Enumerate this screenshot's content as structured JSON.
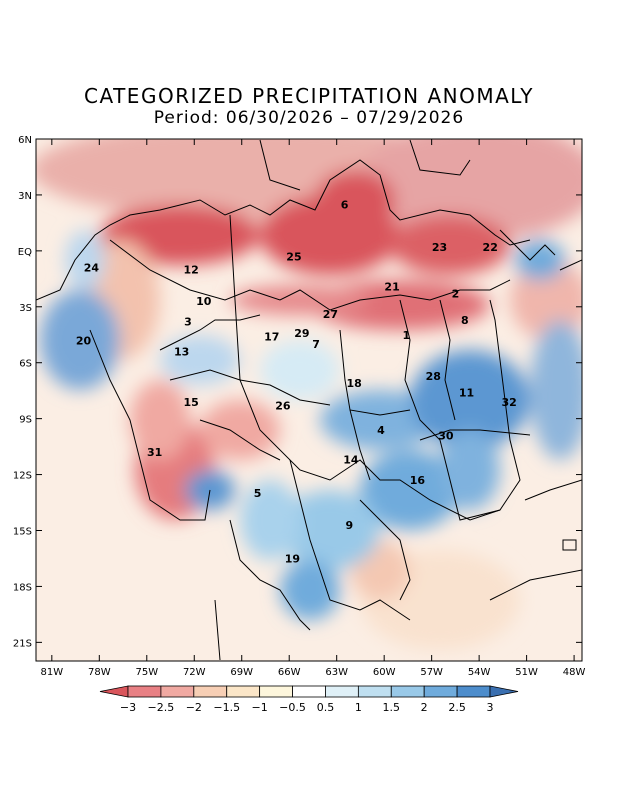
{
  "title": "CATEGORIZED PRECIPITATION ANOMALY",
  "period": "Period: 06/30/2026 – 07/29/2026",
  "lat_ticks": [
    {
      "lat": 6,
      "label": "6N"
    },
    {
      "lat": 3,
      "label": "3N"
    },
    {
      "lat": 0,
      "label": "EQ"
    },
    {
      "lat": -3,
      "label": "3S"
    },
    {
      "lat": -6,
      "label": "6S"
    },
    {
      "lat": -9,
      "label": "9S"
    },
    {
      "lat": -12,
      "label": "12S"
    },
    {
      "lat": -15,
      "label": "15S"
    },
    {
      "lat": -18,
      "label": "18S"
    },
    {
      "lat": -21,
      "label": "21S"
    }
  ],
  "lon_ticks": [
    {
      "lon": -81,
      "label": "81W"
    },
    {
      "lon": -78,
      "label": "78W"
    },
    {
      "lon": -75,
      "label": "75W"
    },
    {
      "lon": -72,
      "label": "72W"
    },
    {
      "lon": -69,
      "label": "69W"
    },
    {
      "lon": -66,
      "label": "66W"
    },
    {
      "lon": -63,
      "label": "63W"
    },
    {
      "lon": -60,
      "label": "60W"
    },
    {
      "lon": -57,
      "label": "57W"
    },
    {
      "lon": -54,
      "label": "54W"
    },
    {
      "lon": -51,
      "label": "51W"
    },
    {
      "lon": -48,
      "label": "48W"
    }
  ],
  "extent": {
    "lon_min": -82,
    "lon_max": -47.5,
    "lat_min": -22,
    "lat_max": 6
  },
  "colorbar": {
    "labels": [
      "-3",
      "-2.5",
      "-2",
      "-1.5",
      "-1",
      "-0.5",
      "0.5",
      "1",
      "1.5",
      "2",
      "2.5",
      "3"
    ],
    "colors": [
      "#d9555b",
      "#e88084",
      "#f0a9a2",
      "#f7cfb5",
      "#fbe6c8",
      "#fdf6dc",
      "#ffffff",
      "#dff0f7",
      "#bfdff0",
      "#99c9e8",
      "#6fabdc",
      "#4d8dcc",
      "#3a6fb0"
    ]
  },
  "basins": [
    {
      "id": "1",
      "lon": -58.6,
      "lat": -4.5
    },
    {
      "id": "2",
      "lon": -55.5,
      "lat": -2.3
    },
    {
      "id": "3",
      "lon": -72.4,
      "lat": -3.8
    },
    {
      "id": "4",
      "lon": -60.2,
      "lat": -9.6
    },
    {
      "id": "5",
      "lon": -68.0,
      "lat": -13.0
    },
    {
      "id": "6",
      "lon": -62.5,
      "lat": 2.5
    },
    {
      "id": "7",
      "lon": -64.3,
      "lat": -5.0
    },
    {
      "id": "8",
      "lon": -54.9,
      "lat": -3.7
    },
    {
      "id": "9",
      "lon": -62.2,
      "lat": -14.7
    },
    {
      "id": "10",
      "lon": -71.4,
      "lat": -2.7
    },
    {
      "id": "11",
      "lon": -54.8,
      "lat": -7.6
    },
    {
      "id": "12",
      "lon": -72.2,
      "lat": -1.0
    },
    {
      "id": "13",
      "lon": -72.8,
      "lat": -5.4
    },
    {
      "id": "14",
      "lon": -62.1,
      "lat": -11.2
    },
    {
      "id": "15",
      "lon": -72.2,
      "lat": -8.1
    },
    {
      "id": "16",
      "lon": -57.9,
      "lat": -12.3
    },
    {
      "id": "17",
      "lon": -67.1,
      "lat": -4.6
    },
    {
      "id": "18",
      "lon": -61.9,
      "lat": -7.1
    },
    {
      "id": "19",
      "lon": -65.8,
      "lat": -16.5
    },
    {
      "id": "20",
      "lon": -79.0,
      "lat": -4.8
    },
    {
      "id": "21",
      "lon": -59.5,
      "lat": -1.9
    },
    {
      "id": "22",
      "lon": -53.3,
      "lat": 0.2
    },
    {
      "id": "23",
      "lon": -56.5,
      "lat": 0.2
    },
    {
      "id": "24",
      "lon": -78.5,
      "lat": -0.9
    },
    {
      "id": "25",
      "lon": -65.7,
      "lat": -0.3
    },
    {
      "id": "26",
      "lon": -66.4,
      "lat": -8.3
    },
    {
      "id": "27",
      "lon": -63.4,
      "lat": -3.4
    },
    {
      "id": "28",
      "lon": -56.9,
      "lat": -6.7
    },
    {
      "id": "29",
      "lon": -65.2,
      "lat": -4.4
    },
    {
      "id": "30",
      "lon": -56.1,
      "lat": -9.9
    },
    {
      "id": "31",
      "lon": -74.5,
      "lat": -10.8
    },
    {
      "id": "32",
      "lon": -52.1,
      "lat": -8.1
    }
  ]
}
